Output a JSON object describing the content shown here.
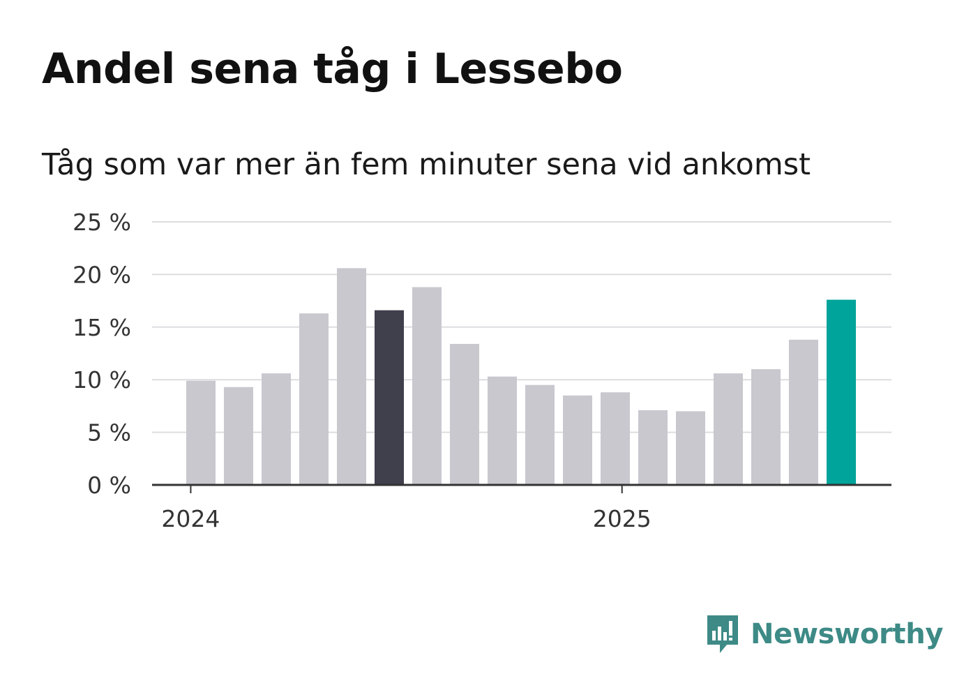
{
  "header": {
    "title": "Andel sena tåg i Lessebo",
    "subtitle": "Tåg som var mer än fem minuter sena vid ankomst"
  },
  "chart_data": {
    "type": "bar",
    "title": "Andel sena tåg i Lessebo",
    "subtitle": "Tåg som var mer än fem minuter sena vid ankomst",
    "xlabel": "",
    "ylabel": "",
    "categories": [
      "2024-01",
      "2024-02",
      "2024-03",
      "2024-04",
      "2024-05",
      "2024-06",
      "2024-07",
      "2024-08",
      "2024-09",
      "2024-10",
      "2024-11",
      "2024-12",
      "2025-01",
      "2025-02",
      "2025-03",
      "2025-04",
      "2025-05",
      "2025-06"
    ],
    "values": [
      9.9,
      9.3,
      10.6,
      16.3,
      20.6,
      16.6,
      18.8,
      13.4,
      10.3,
      9.5,
      8.5,
      8.8,
      7.1,
      7.0,
      10.6,
      11.0,
      13.8,
      17.6
    ],
    "bar_colors": [
      "#c9c8cf",
      "#c9c8cf",
      "#c9c8cf",
      "#c9c8cf",
      "#c9c8cf",
      "#403f4c",
      "#c9c8cf",
      "#c9c8cf",
      "#c9c8cf",
      "#c9c8cf",
      "#c9c8cf",
      "#c9c8cf",
      "#c9c8cf",
      "#c9c8cf",
      "#c9c8cf",
      "#c9c8cf",
      "#c9c8cf",
      "#00a49a"
    ],
    "ylim": [
      0,
      25
    ],
    "yticks": [
      0,
      5,
      10,
      15,
      20,
      25
    ],
    "ytick_labels": [
      "0 %",
      "5 %",
      "10 %",
      "15 %",
      "20 %",
      "25 %"
    ],
    "xticks": [
      {
        "label": "2024",
        "date": "2024-01"
      },
      {
        "label": "2025",
        "date": "2025-01"
      }
    ],
    "grid": true,
    "legend": "none"
  },
  "brand": {
    "name": "Newsworthy",
    "icon": "newsworthy-logo-icon",
    "color": "#3d8a86"
  }
}
